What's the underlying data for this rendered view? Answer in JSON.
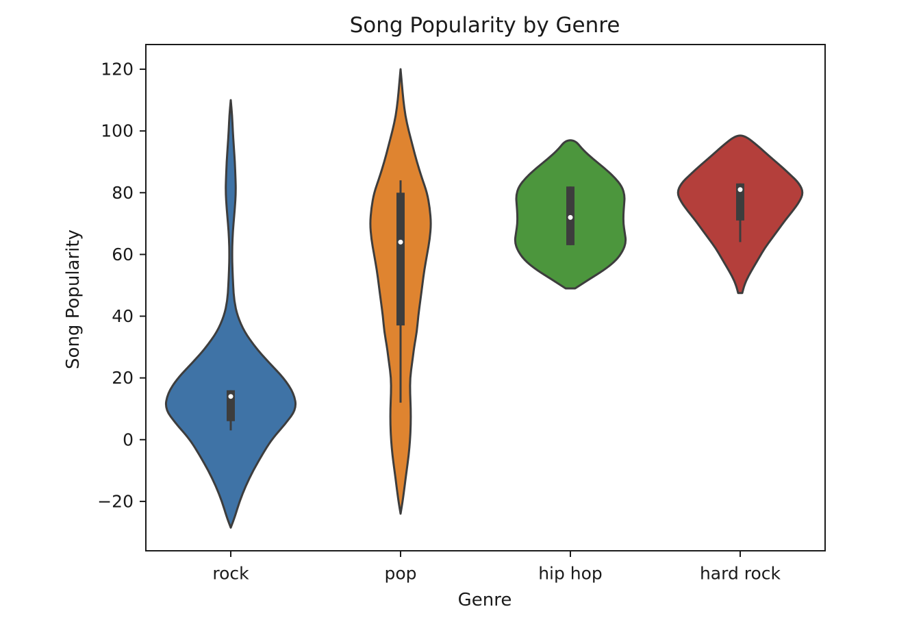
{
  "chart_data": {
    "type": "violin",
    "title": "Song Popularity by Genre",
    "xlabel": "Genre",
    "ylabel": "Song Popularity",
    "ylim": [
      -36,
      128
    ],
    "yticks": [
      -20,
      0,
      20,
      40,
      60,
      80,
      100,
      120
    ],
    "ytick_labels": [
      "−20",
      "0",
      "20",
      "40",
      "60",
      "80",
      "100",
      "120"
    ],
    "grid": false,
    "legend": "none",
    "categories": [
      "rock",
      "pop",
      "hip hop",
      "hard rock"
    ],
    "series": [
      {
        "category": "rock",
        "color": "#3f73a6",
        "min": -28.5,
        "max": 110,
        "median": 14,
        "q1": 6,
        "q3": 16,
        "whisker_low": 3,
        "whisker_high": 16,
        "density": [
          [
            -28.5,
            0.0
          ],
          [
            -25,
            0.06
          ],
          [
            -20,
            0.13
          ],
          [
            -15,
            0.22
          ],
          [
            -10,
            0.33
          ],
          [
            -5,
            0.46
          ],
          [
            0,
            0.6
          ],
          [
            5,
            0.8
          ],
          [
            10,
            0.97
          ],
          [
            15,
            0.93
          ],
          [
            20,
            0.78
          ],
          [
            25,
            0.56
          ],
          [
            30,
            0.36
          ],
          [
            35,
            0.2
          ],
          [
            40,
            0.1
          ],
          [
            45,
            0.05
          ],
          [
            50,
            0.035
          ],
          [
            55,
            0.025
          ],
          [
            60,
            0.02
          ],
          [
            65,
            0.025
          ],
          [
            70,
            0.04
          ],
          [
            75,
            0.06
          ],
          [
            80,
            0.075
          ],
          [
            85,
            0.07
          ],
          [
            90,
            0.06
          ],
          [
            95,
            0.045
          ],
          [
            100,
            0.03
          ],
          [
            105,
            0.02
          ],
          [
            110,
            0.0
          ]
        ]
      },
      {
        "category": "pop",
        "color": "#df8430",
        "min": -24,
        "max": 120,
        "median": 64,
        "q1": 37,
        "q3": 80,
        "whisker_low": 12,
        "whisker_high": 84,
        "density": [
          [
            -24,
            0.0
          ],
          [
            -20,
            0.03
          ],
          [
            -15,
            0.06
          ],
          [
            -10,
            0.09
          ],
          [
            -5,
            0.12
          ],
          [
            0,
            0.14
          ],
          [
            5,
            0.15
          ],
          [
            10,
            0.15
          ],
          [
            15,
            0.14
          ],
          [
            20,
            0.14
          ],
          [
            25,
            0.17
          ],
          [
            30,
            0.2
          ],
          [
            35,
            0.24
          ],
          [
            40,
            0.26
          ],
          [
            45,
            0.29
          ],
          [
            50,
            0.32
          ],
          [
            55,
            0.35
          ],
          [
            60,
            0.39
          ],
          [
            65,
            0.43
          ],
          [
            70,
            0.45
          ],
          [
            75,
            0.43
          ],
          [
            80,
            0.39
          ],
          [
            85,
            0.31
          ],
          [
            90,
            0.24
          ],
          [
            95,
            0.18
          ],
          [
            100,
            0.12
          ],
          [
            105,
            0.07
          ],
          [
            110,
            0.04
          ],
          [
            115,
            0.02
          ],
          [
            120,
            0.0
          ]
        ]
      },
      {
        "category": "hip hop",
        "color": "#4c963d",
        "min": 49,
        "max": 97,
        "median": 72,
        "q1": 63,
        "q3": 82,
        "whisker_low": 63,
        "whisker_high": 82,
        "density": [
          [
            49,
            0.07
          ],
          [
            52,
            0.28
          ],
          [
            55,
            0.5
          ],
          [
            58,
            0.67
          ],
          [
            61,
            0.77
          ],
          [
            64,
            0.82
          ],
          [
            67,
            0.8
          ],
          [
            70,
            0.78
          ],
          [
            73,
            0.78
          ],
          [
            76,
            0.79
          ],
          [
            79,
            0.8
          ],
          [
            82,
            0.76
          ],
          [
            85,
            0.65
          ],
          [
            88,
            0.5
          ],
          [
            91,
            0.33
          ],
          [
            94,
            0.18
          ],
          [
            97,
            0.07
          ]
        ]
      },
      {
        "category": "hard rock",
        "color": "#b43f3b",
        "min": 47.5,
        "max": 98.5,
        "median": 81,
        "q1": 71,
        "q3": 83,
        "whisker_low": 64,
        "whisker_high": 83,
        "density": [
          [
            47.5,
            0.03
          ],
          [
            50,
            0.06
          ],
          [
            53,
            0.12
          ],
          [
            56,
            0.2
          ],
          [
            59,
            0.28
          ],
          [
            62,
            0.36
          ],
          [
            65,
            0.46
          ],
          [
            68,
            0.56
          ],
          [
            71,
            0.66
          ],
          [
            74,
            0.77
          ],
          [
            77,
            0.87
          ],
          [
            80,
            0.93
          ],
          [
            83,
            0.87
          ],
          [
            86,
            0.73
          ],
          [
            89,
            0.58
          ],
          [
            92,
            0.42
          ],
          [
            95,
            0.27
          ],
          [
            98.5,
            0.07
          ]
        ]
      }
    ]
  }
}
